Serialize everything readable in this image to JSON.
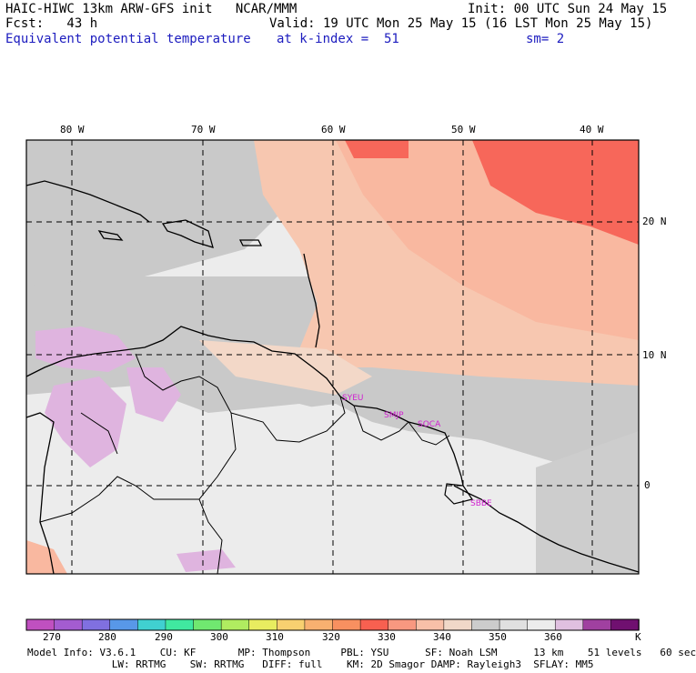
{
  "header": {
    "line1_left": "HAIC-HIWC 13km ARW-GFS init   NCAR/MMM",
    "line1_right": "Init: 00 UTC Sun 24 May 15",
    "line2_left": "Fcst:   43 h",
    "line2_right": "Valid: 19 UTC Mon 25 May 15 (16 LST Mon 25 May 15)",
    "field": "Equivalent potential temperature",
    "level": "at k-index =  51",
    "smooth": "sm= 2"
  },
  "map": {
    "lon_labels": [
      "80 W",
      "70 W",
      "60 W",
      "50 W",
      "40 W"
    ],
    "lon_values": [
      -80,
      -70,
      -60,
      -50,
      -40
    ],
    "lat_labels": [
      "20 N",
      "10 N",
      "0"
    ],
    "lat_values": [
      20,
      10,
      0
    ],
    "stations": [
      "SYEU",
      "SMJP",
      "SOCA",
      "SBBE"
    ],
    "colors": {
      "warm": "#f9b8a0",
      "hot": "#f7675a",
      "peach": "#f7c7b0",
      "gray": "#c9c9c9",
      "light": "#ececec",
      "lilac": "#dfb4df",
      "mid": "#d6cfcc"
    }
  },
  "colorbar": {
    "labels": [
      "270",
      "280",
      "290",
      "300",
      "310",
      "320",
      "330",
      "340",
      "350",
      "360"
    ],
    "unit": "K",
    "colors": [
      "#c050c0",
      "#a45cd0",
      "#8070e0",
      "#5898e8",
      "#40d0d0",
      "#40e8a0",
      "#70e870",
      "#b0ec60",
      "#e8ec60",
      "#f8d070",
      "#f8b070",
      "#f89060",
      "#f86050",
      "#f89880",
      "#f8c0a8",
      "#f0d8c8",
      "#cccccc",
      "#e0e0e0",
      "#ececec",
      "#e0c0e0",
      "#a040a0",
      "#701070"
    ]
  },
  "footer": {
    "line1": "Model Info: V3.6.1    CU: KF       MP: Thompson     PBL: YSU      SF: Noah LSM      13 km    51 levels   60 sec",
    "line2": "              LW: RRTMG    SW: RRTMG   DIFF: full    KM: 2D Smagor DAMP: Rayleigh3  SFLAY: MM5"
  }
}
